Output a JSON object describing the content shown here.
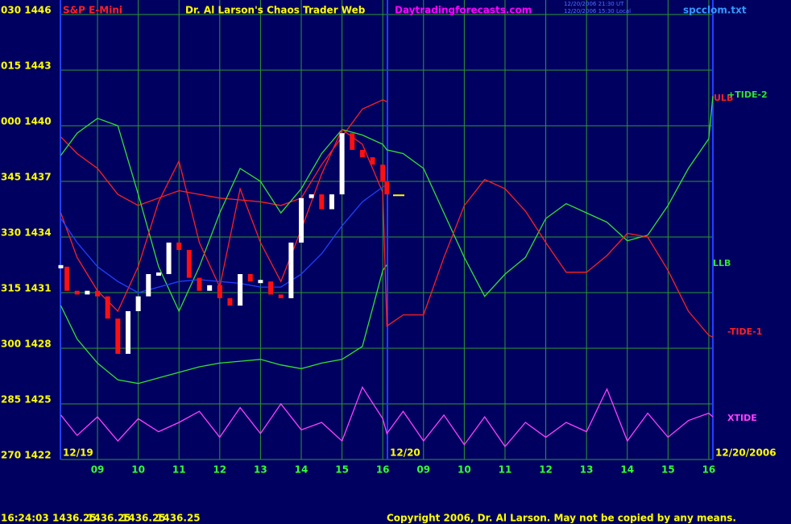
{
  "chart_data": {
    "type": "line",
    "symbol": "S&P E-Mini",
    "title": "Dr. Al Larson's Chaos Trader Web",
    "website": "Daytradingforecasts.com",
    "timestamps": [
      "12/20/2006 21:30 UT",
      "12/20/2006 15:30 Local"
    ],
    "file": "spcclom.txt",
    "date_labels": [
      "12/19",
      "12/20",
      "12/20/2006"
    ],
    "x": [
      0.1,
      0.5,
      1,
      1.5,
      2,
      2.5,
      3,
      3.5,
      4,
      4.5,
      5,
      5.5,
      6,
      6.5,
      7,
      7.5,
      8,
      8.1,
      8.5,
      9,
      9.5,
      10,
      10.5,
      11,
      11.5,
      12,
      12.5,
      13,
      13.5,
      14,
      14.5,
      15,
      15.5,
      16,
      16.1
    ],
    "xlim": [
      0.09,
      16.1
    ],
    "xticks": [
      {
        "value": 1,
        "label": "09"
      },
      {
        "value": 2,
        "label": "10"
      },
      {
        "value": 3,
        "label": "11"
      },
      {
        "value": 4,
        "label": "12"
      },
      {
        "value": 5,
        "label": "13"
      },
      {
        "value": 6,
        "label": "14"
      },
      {
        "value": 7,
        "label": "15"
      },
      {
        "value": 8,
        "label": "16"
      },
      {
        "value": 9,
        "label": "09"
      },
      {
        "value": 10,
        "label": "10"
      },
      {
        "value": 11,
        "label": "11"
      },
      {
        "value": 12,
        "label": "12"
      },
      {
        "value": 13,
        "label": "13"
      },
      {
        "value": 14,
        "label": "14"
      },
      {
        "value": 15,
        "label": "15"
      },
      {
        "value": 16,
        "label": "16"
      }
    ],
    "ylim": [
      1422,
      1446
    ],
    "yticks": [
      {
        "value": 1446,
        "label": "030 1446"
      },
      {
        "value": 1443,
        "label": "015 1443"
      },
      {
        "value": 1440,
        "label": "000 1440"
      },
      {
        "value": 1437,
        "label": "345 1437"
      },
      {
        "value": 1434,
        "label": "330 1434"
      },
      {
        "value": 1431,
        "label": "315 1431"
      },
      {
        "value": 1428,
        "label": "300 1428"
      },
      {
        "value": 1425,
        "label": "285 1425"
      },
      {
        "value": 1422,
        "label": "270 1422"
      }
    ],
    "grid": true,
    "series": [
      {
        "name": "ULB",
        "color": "#ff2020",
        "values": [
          1439.4,
          1438.5,
          1437.7,
          1436.3,
          1435.7,
          1436.1,
          1436.5,
          1436.3,
          1436.1,
          1436.0,
          1435.9,
          1435.7,
          1436.1,
          1437.9,
          1439.4,
          1440.9,
          1441.4,
          1441.3,
          null,
          null,
          null,
          null,
          null,
          null,
          null,
          null,
          null,
          null,
          null,
          null,
          null,
          null,
          null,
          null,
          null
        ]
      },
      {
        "name": "+TIDE-2",
        "color": "#33e033",
        "values": [
          1438.4,
          1439.6,
          1440.4,
          1440.0,
          1436.3,
          1432.4,
          1430.0,
          1432.4,
          1435.3,
          1437.7,
          1437.0,
          1435.3,
          1436.6,
          1438.5,
          1439.8,
          1439.5,
          1439.0,
          1438.7,
          1438.5,
          1437.7,
          1435.3,
          1432.9,
          1430.8,
          1432.0,
          1432.9,
          1435.0,
          1435.8,
          1435.3,
          1434.8,
          1433.8,
          1434.1,
          1435.7,
          1437.7,
          1439.3,
          1441.6
        ]
      },
      {
        "name": "LLB",
        "color": "#33e033",
        "values": [
          1430.3,
          1428.5,
          1427.2,
          1426.3,
          1426.1,
          1426.4,
          1426.7,
          1427.0,
          1427.2,
          1427.3,
          1427.4,
          1427.1,
          1426.9,
          1427.2,
          1427.4,
          1428.1,
          1432.2,
          1432.5,
          null,
          null,
          null,
          null,
          null,
          null,
          null,
          null,
          null,
          null,
          null,
          null,
          null,
          null,
          null,
          null,
          null
        ]
      },
      {
        "name": "-TIDE-1",
        "color": "#ff2020",
        "values": [
          1435.3,
          1432.9,
          1431.1,
          1430.0,
          1432.4,
          1435.9,
          1438.1,
          1433.7,
          1431.3,
          1436.6,
          1433.7,
          1431.6,
          1434.4,
          1437.4,
          1439.8,
          1439.0,
          1436.4,
          1429.2,
          1429.8,
          1429.8,
          1432.9,
          1435.7,
          1437.1,
          1436.6,
          1435.4,
          1433.7,
          1432.1,
          1432.1,
          1433.0,
          1434.2,
          1434.0,
          1432.2,
          1430.0,
          1428.7,
          1428.6
        ]
      },
      {
        "name": "XTIDE",
        "color": "#ff40ff",
        "values": [
          1424.4,
          1423.3,
          1424.3,
          1423.0,
          1424.2,
          1423.5,
          1424.0,
          1424.6,
          1423.2,
          1424.8,
          1423.4,
          1425.0,
          1423.6,
          1424.0,
          1423.0,
          1425.9,
          1424.2,
          1423.4,
          1424.6,
          1423.0,
          1424.4,
          1422.8,
          1424.3,
          1422.7,
          1424.0,
          1423.2,
          1424.0,
          1423.5,
          1425.8,
          1423.0,
          1424.5,
          1423.2,
          1424.1,
          1424.5,
          1424.3
        ]
      },
      {
        "color": "#2040ff",
        "values": [
          1435.0,
          1433.7,
          1432.4,
          1431.6,
          1431.0,
          1431.3,
          1431.6,
          1431.7,
          1431.6,
          1431.5,
          1431.3,
          1431.3,
          1432.0,
          1433.1,
          1434.6,
          1435.9,
          1436.7,
          1436.8,
          null,
          null,
          null,
          null,
          null,
          null,
          null,
          null,
          null,
          null,
          null,
          null,
          null,
          null,
          null,
          null,
          null
        ]
      }
    ],
    "price": {
      "x": [
        0.1,
        0.25,
        0.5,
        0.75,
        1,
        1.25,
        1.5,
        1.75,
        2,
        2.25,
        2.5,
        2.75,
        3,
        3.25,
        3.5,
        3.75,
        4,
        4.25,
        4.5,
        4.75,
        5,
        5.25,
        5.5,
        5.75,
        6,
        6.25,
        6.5,
        6.75,
        7,
        7.25,
        7.5,
        7.75,
        8,
        8.1
      ],
      "values": [
        1432.4,
        1431.1,
        1430.9,
        1431.1,
        1430.8,
        1429.6,
        1427.7,
        1430.0,
        1430.8,
        1432.0,
        1432.0,
        1433.7,
        1433.3,
        1431.8,
        1431.1,
        1431.4,
        1430.7,
        1430.3,
        1432.0,
        1431.6,
        1431.6,
        1430.9,
        1430.7,
        1433.7,
        1436.1,
        1436.3,
        1435.5,
        1436.3,
        1439.6,
        1438.7,
        1438.3,
        1437.9,
        1437.0,
        1436.3
      ],
      "up_color": "#ffffff",
      "down_color": "#ff1010"
    },
    "last": 1436.25,
    "last_color": "#ffff00"
  },
  "status": {
    "time": "16:24:03",
    "quotes": [
      1436.25,
      1436.25,
      1436.25,
      1436.25
    ]
  },
  "copyright": "Copyright 2006, Dr. Al Larson. May not be copied by any means."
}
